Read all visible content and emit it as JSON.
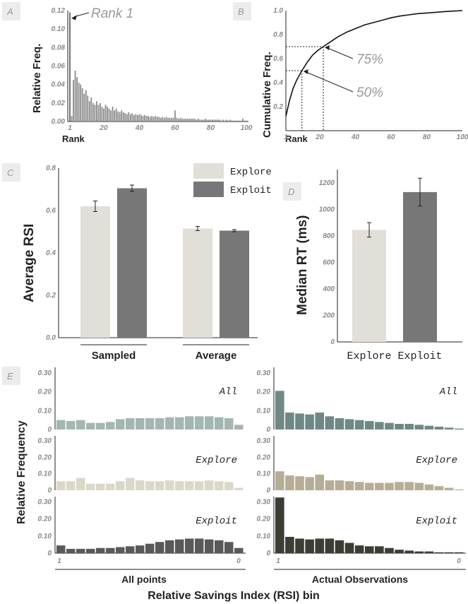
{
  "panels": {
    "A": "A",
    "B": "B",
    "C": "C",
    "D": "D",
    "E": "E"
  },
  "colors": {
    "explore": "#e2dfd8",
    "exploit": "#777777",
    "rank_bar": "#8c8c8c",
    "all_left": "#a3b6b2",
    "all_right": "#6f8885",
    "explore_left": "#dcd8c9",
    "explore_right": "#b6ad96",
    "exploit_left": "#595959",
    "exploit_right": "#3c3d35"
  },
  "chart_data": [
    {
      "id": "A",
      "type": "bar",
      "ylabel": "Relative Freq.",
      "xlabel": "Rank",
      "ylim": [
        0,
        0.12
      ],
      "yticks": [
        "0.00",
        "0.02",
        "0.04",
        "0.06",
        "0.08",
        "0.10",
        "0.12"
      ],
      "xticks": [
        "1",
        "20",
        "40",
        "60",
        "80",
        "100"
      ],
      "annotation": "Rank 1",
      "x": [
        1,
        2,
        3,
        4,
        5,
        6,
        7,
        8,
        9,
        10,
        11,
        12,
        13,
        14,
        15,
        16,
        17,
        18,
        19,
        20,
        21,
        22,
        23,
        24,
        25,
        26,
        27,
        28,
        29,
        30,
        31,
        32,
        33,
        34,
        35,
        36,
        37,
        38,
        39,
        40,
        41,
        42,
        43,
        44,
        45,
        46,
        47,
        48,
        49,
        50,
        51,
        52,
        53,
        54,
        55,
        56,
        57,
        58,
        59,
        60,
        61,
        62,
        63,
        64,
        65,
        66,
        67,
        68,
        69,
        70,
        71,
        72,
        73,
        74,
        75,
        76,
        77,
        78,
        79,
        80,
        81,
        82,
        83,
        84,
        85,
        86,
        87,
        88,
        89,
        90,
        91,
        92,
        93,
        94,
        95,
        96,
        97,
        98,
        99,
        100
      ],
      "values": [
        0.118,
        0.006,
        0.045,
        0.055,
        0.048,
        0.042,
        0.04,
        0.036,
        0.03,
        0.034,
        0.028,
        0.022,
        0.026,
        0.02,
        0.018,
        0.022,
        0.018,
        0.02,
        0.016,
        0.014,
        0.018,
        0.016,
        0.014,
        0.012,
        0.016,
        0.012,
        0.014,
        0.011,
        0.01,
        0.012,
        0.01,
        0.009,
        0.008,
        0.01,
        0.008,
        0.009,
        0.007,
        0.008,
        0.007,
        0.008,
        0.007,
        0.006,
        0.007,
        0.006,
        0.006,
        0.005,
        0.006,
        0.005,
        0.006,
        0.005,
        0.005,
        0.004,
        0.005,
        0.004,
        0.005,
        0.004,
        0.004,
        0.004,
        0.004,
        0.012,
        0.004,
        0.003,
        0.004,
        0.003,
        0.003,
        0.003,
        0.003,
        0.003,
        0.003,
        0.003,
        0.003,
        0.002,
        0.003,
        0.002,
        0.002,
        0.002,
        0.003,
        0.002,
        0.002,
        0.002,
        0.002,
        0.002,
        0.002,
        0.002,
        0.002,
        0.001,
        0.002,
        0.001,
        0.002,
        0.001,
        0.002,
        0.001,
        0.001,
        0.001,
        0.001,
        0.001,
        0.001,
        0.003,
        0.001,
        0.001
      ]
    },
    {
      "id": "B",
      "type": "line",
      "ylabel": "Cumulative Freq.",
      "xlabel": "Rank",
      "ylim": [
        0,
        1.0
      ],
      "xlim": [
        1,
        100
      ],
      "yticks": [
        "0.2",
        "0.4",
        "0.6",
        "0.8",
        "1.0"
      ],
      "xticks": [
        "1",
        "20",
        "40",
        "60",
        "80",
        "100"
      ],
      "x": [
        1,
        3,
        5,
        7,
        10,
        13,
        16,
        19,
        22,
        25,
        30,
        35,
        40,
        45,
        50,
        55,
        60,
        65,
        70,
        75,
        80,
        85,
        90,
        95,
        100
      ],
      "y": [
        0.12,
        0.25,
        0.35,
        0.42,
        0.5,
        0.57,
        0.63,
        0.67,
        0.7,
        0.73,
        0.78,
        0.82,
        0.85,
        0.88,
        0.9,
        0.92,
        0.94,
        0.955,
        0.965,
        0.975,
        0.98,
        0.986,
        0.992,
        0.996,
        1.0
      ],
      "guides": [
        {
          "label": "75%",
          "x": 22,
          "y": 0.7
        },
        {
          "label": "50%",
          "x": 10,
          "y": 0.5
        }
      ]
    },
    {
      "id": "C",
      "type": "bar",
      "ylabel": "Average RSI",
      "ylim": [
        0,
        0.8
      ],
      "yticks": [
        "0.0",
        "0.2",
        "0.4",
        "0.6",
        "0.8"
      ],
      "categories": [
        "Sampled",
        "Average"
      ],
      "series": [
        {
          "name": "Explore",
          "values": [
            0.62,
            0.515
          ],
          "err": [
            0.025,
            0.01
          ]
        },
        {
          "name": "Exploit",
          "values": [
            0.705,
            0.505
          ],
          "err": [
            0.015,
            0.005
          ]
        }
      ]
    },
    {
      "id": "D",
      "type": "bar",
      "ylabel": "Median RT (ms)",
      "ylim": [
        0,
        1300
      ],
      "yticks": [
        "0",
        "200",
        "400",
        "600",
        "800",
        "1000",
        "1200"
      ],
      "categories": [
        "Explore",
        "Exploit"
      ],
      "values": [
        845,
        1130
      ],
      "err": [
        55,
        105
      ]
    },
    {
      "id": "E",
      "type": "bar",
      "ylabel": "Relative Frequency",
      "xlabel": "Relative Savings Index (RSI) bin",
      "yticks": [
        "0",
        "0.10",
        "0.20",
        "0.30"
      ],
      "ylim": [
        0,
        0.33
      ],
      "columns": [
        "All points",
        "Actual Observations"
      ],
      "x_start": "1",
      "x_end": "0",
      "rows": [
        {
          "name": "All",
          "left": [
            0.05,
            0.045,
            0.05,
            0.035,
            0.035,
            0.04,
            0.055,
            0.06,
            0.06,
            0.06,
            0.06,
            0.065,
            0.065,
            0.07,
            0.07,
            0.07,
            0.065,
            0.06,
            0.025
          ],
          "right": [
            0.205,
            0.09,
            0.085,
            0.08,
            0.09,
            0.07,
            0.06,
            0.055,
            0.05,
            0.045,
            0.04,
            0.035,
            0.03,
            0.03,
            0.025,
            0.02,
            0.015,
            0.01,
            0.005
          ]
        },
        {
          "name": "Explore",
          "left": [
            0.055,
            0.055,
            0.075,
            0.04,
            0.04,
            0.04,
            0.055,
            0.075,
            0.06,
            0.055,
            0.055,
            0.06,
            0.055,
            0.055,
            0.055,
            0.06,
            0.055,
            0.05,
            0.015
          ],
          "right": [
            0.115,
            0.09,
            0.085,
            0.08,
            0.095,
            0.06,
            0.06,
            0.055,
            0.05,
            0.045,
            0.045,
            0.045,
            0.05,
            0.05,
            0.045,
            0.035,
            0.025,
            0.015,
            0.005
          ]
        },
        {
          "name": "Exploit",
          "left": [
            0.045,
            0.025,
            0.025,
            0.025,
            0.03,
            0.03,
            0.035,
            0.04,
            0.045,
            0.055,
            0.065,
            0.075,
            0.08,
            0.085,
            0.085,
            0.08,
            0.075,
            0.065,
            0.03
          ],
          "right": [
            0.325,
            0.095,
            0.085,
            0.08,
            0.085,
            0.085,
            0.075,
            0.06,
            0.045,
            0.04,
            0.04,
            0.03,
            0.02,
            0.015,
            0.01,
            0.01,
            0.005,
            0.005,
            0.005
          ]
        }
      ]
    }
  ]
}
